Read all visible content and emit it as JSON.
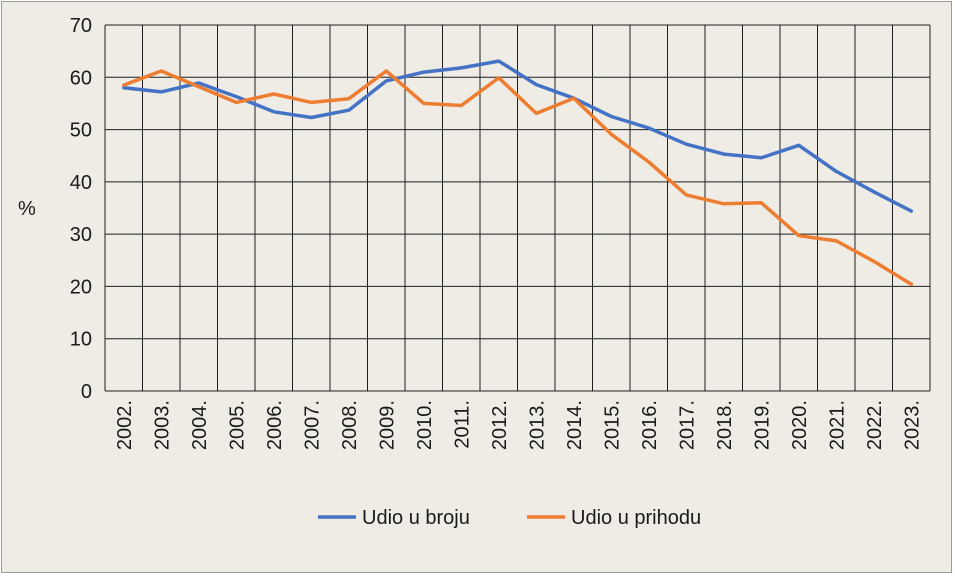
{
  "chart_data": {
    "type": "line",
    "categories": [
      "2002.",
      "2003.",
      "2004.",
      "2005.",
      "2006.",
      "2007.",
      "2008.",
      "2009.",
      "2010.",
      "2011.",
      "2012.",
      "2013.",
      "2014.",
      "2015.",
      "2016.",
      "2017.",
      "2018.",
      "2019.",
      "2020.",
      "2021.",
      "2022.",
      "2023."
    ],
    "series": [
      {
        "name": "Udio u broju",
        "color": "#4472c4",
        "values": [
          58,
          57.2,
          58.9,
          56.3,
          53.4,
          52.3,
          53.7,
          59.3,
          61.0,
          61.8,
          63.1,
          58.6,
          56.0,
          52.5,
          50.3,
          47.2,
          45.3,
          44.6,
          47.0,
          42.0,
          38.1,
          34.4
        ]
      },
      {
        "name": "Udio u prihodu",
        "color": "#ed7d31",
        "values": [
          58.5,
          61.2,
          58.2,
          55.2,
          56.8,
          55.2,
          55.9,
          61.2,
          55.0,
          54.6,
          59.9,
          53.1,
          56.0,
          49.1,
          43.8,
          37.5,
          35.8,
          36.0,
          29.7,
          28.7,
          24.8,
          20.4
        ]
      }
    ],
    "ylabel": "%",
    "ylim": [
      0,
      70
    ],
    "yticks": [
      0,
      10,
      20,
      30,
      40,
      50,
      60,
      70
    ],
    "grid": true,
    "legend_position": "bottom-center"
  }
}
